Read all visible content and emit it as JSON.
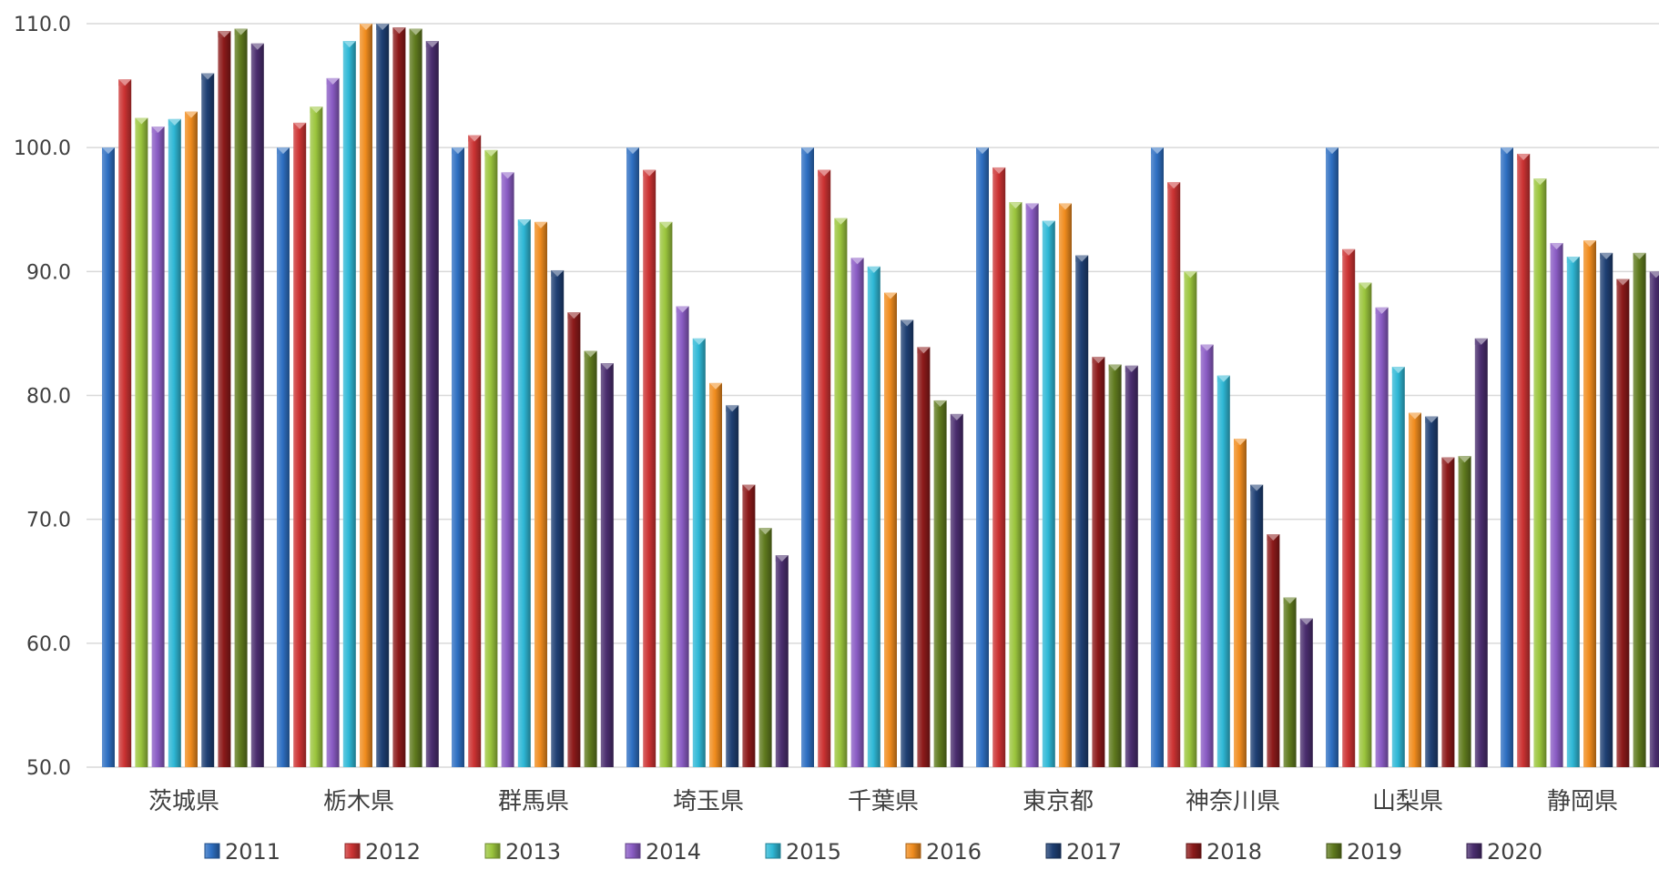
{
  "colors": [
    "#2e6fc2",
    "#cc3333",
    "#9bc53d",
    "#8a5cc4",
    "#2fb8d6",
    "#f08c1e",
    "#1e3f73",
    "#8c1a1a",
    "#5f7a1e",
    "#4a2d6e"
  ],
  "chart_data": {
    "type": "bar",
    "title": "",
    "xlabel": "",
    "ylabel": "",
    "ylim": [
      50,
      110
    ],
    "yticks": [
      "110.0",
      "100.0",
      "90.0",
      "80.0",
      "70.0",
      "60.0",
      "50.0"
    ],
    "ytick_values": [
      110,
      100,
      90,
      80,
      70,
      60,
      50
    ],
    "grid": true,
    "legend_position": "bottom",
    "categories": [
      "茨城県",
      "栃木県",
      "群馬県",
      "埼玉県",
      "千葉県",
      "東京都",
      "神奈川県",
      "山梨県",
      "静岡県"
    ],
    "series": [
      {
        "name": "2011",
        "values": [
          100.0,
          100.0,
          100.0,
          100.0,
          100.0,
          100.0,
          100.0,
          100.0,
          100.0
        ]
      },
      {
        "name": "2012",
        "values": [
          105.5,
          102.0,
          101.0,
          98.2,
          98.2,
          98.4,
          97.2,
          91.8,
          99.5
        ]
      },
      {
        "name": "2013",
        "values": [
          102.4,
          103.3,
          99.8,
          94.0,
          94.3,
          95.6,
          90.0,
          89.1,
          97.5
        ]
      },
      {
        "name": "2014",
        "values": [
          101.7,
          105.6,
          98.0,
          87.2,
          91.1,
          95.5,
          84.1,
          87.1,
          92.3
        ]
      },
      {
        "name": "2015",
        "values": [
          102.3,
          108.6,
          94.2,
          84.6,
          90.4,
          94.1,
          81.6,
          82.3,
          91.2
        ]
      },
      {
        "name": "2016",
        "values": [
          102.9,
          110.0,
          94.0,
          81.0,
          88.3,
          95.5,
          76.5,
          78.6,
          92.5
        ]
      },
      {
        "name": "2017",
        "values": [
          106.0,
          110.0,
          90.1,
          79.2,
          86.1,
          91.3,
          72.8,
          78.3,
          91.5
        ]
      },
      {
        "name": "2018",
        "values": [
          109.4,
          109.7,
          86.7,
          72.8,
          83.9,
          83.1,
          68.8,
          75.0,
          89.4
        ]
      },
      {
        "name": "2019",
        "values": [
          109.6,
          109.6,
          83.6,
          69.3,
          79.6,
          82.5,
          63.7,
          75.1,
          91.5
        ]
      },
      {
        "name": "2020",
        "values": [
          108.4,
          108.6,
          82.6,
          67.1,
          78.5,
          82.4,
          62.0,
          84.6,
          90.0
        ]
      }
    ]
  }
}
